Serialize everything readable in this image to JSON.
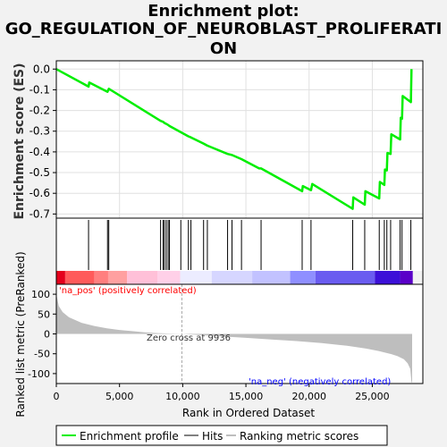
{
  "title_lines": [
    "Enrichment plot:",
    "GO_REGULATION_OF_NEUROBLAST_PROLIFERATI",
    "ON"
  ],
  "colors": {
    "profile": "#00ee00",
    "hits": "#000000",
    "metric_fill": "#bebebe",
    "pos_text": "#ff0000",
    "neg_text": "#0000ff",
    "legend_border": "#000000"
  },
  "chart_data": [
    {
      "type": "line",
      "name": "enrichment-profile",
      "ylabel": "Enrichment score (ES)",
      "ylim": [
        -0.72,
        0.04
      ],
      "yticks": [
        0.0,
        -0.1,
        -0.2,
        -0.3,
        -0.4,
        -0.5,
        -0.6,
        -0.7
      ],
      "ytick_labels": [
        "0.0",
        "-0.1",
        "-0.2",
        "-0.3",
        "-0.4",
        "-0.5",
        "-0.6",
        "-0.7"
      ],
      "xlim": [
        0,
        29000
      ],
      "grid": true,
      "points": [
        [
          0,
          0.0
        ],
        [
          2550,
          -0.085
        ],
        [
          2600,
          -0.065
        ],
        [
          4050,
          -0.11
        ],
        [
          4150,
          -0.095
        ],
        [
          8250,
          -0.25
        ],
        [
          8450,
          -0.255
        ],
        [
          8550,
          -0.26
        ],
        [
          8700,
          -0.265
        ],
        [
          8850,
          -0.27
        ],
        [
          8950,
          -0.275
        ],
        [
          10450,
          -0.325
        ],
        [
          10650,
          -0.33
        ],
        [
          11650,
          -0.36
        ],
        [
          11950,
          -0.37
        ],
        [
          13550,
          -0.41
        ],
        [
          13900,
          -0.415
        ],
        [
          14650,
          -0.435
        ],
        [
          16050,
          -0.48
        ],
        [
          16200,
          -0.48
        ],
        [
          19450,
          -0.59
        ],
        [
          19500,
          -0.565
        ],
        [
          20150,
          -0.585
        ],
        [
          20250,
          -0.555
        ],
        [
          23450,
          -0.675
        ],
        [
          23500,
          -0.62
        ],
        [
          24400,
          -0.655
        ],
        [
          24450,
          -0.59
        ],
        [
          25550,
          -0.625
        ],
        [
          25600,
          -0.545
        ],
        [
          25950,
          -0.56
        ],
        [
          26000,
          -0.485
        ],
        [
          26150,
          -0.49
        ],
        [
          26200,
          -0.405
        ],
        [
          26450,
          -0.41
        ],
        [
          26500,
          -0.315
        ],
        [
          27200,
          -0.34
        ],
        [
          27250,
          -0.235
        ],
        [
          27350,
          -0.24
        ],
        [
          27400,
          -0.13
        ],
        [
          28050,
          -0.16
        ],
        [
          28100,
          0.0
        ]
      ]
    },
    {
      "type": "scatter",
      "name": "hits",
      "x": [
        2550,
        4050,
        4150,
        8250,
        8450,
        8550,
        8700,
        8850,
        8950,
        9850,
        10450,
        10650,
        11650,
        11950,
        13550,
        13900,
        14650,
        16200,
        19450,
        20150,
        23450,
        24400,
        25550,
        25950,
        26150,
        26450,
        27200,
        27350,
        28050
      ]
    },
    {
      "type": "area",
      "name": "ranked-list-metric",
      "xlabel": "Rank in Ordered Dataset",
      "ylabel": "Ranked list metric (PreRanked)",
      "xlim": [
        0,
        29000
      ],
      "ylim": [
        -125,
        125
      ],
      "yticks": [
        100,
        50,
        0,
        -50,
        -100
      ],
      "ytick_labels": [
        "100",
        "50",
        "0",
        "-50",
        "-100"
      ],
      "xticks": [
        0,
        5000,
        10000,
        15000,
        20000,
        25000
      ],
      "xtick_labels": [
        "0",
        "5,000",
        "10,000",
        "15,000",
        "20,000",
        "25,000"
      ],
      "points": [
        [
          0,
          100
        ],
        [
          200,
          70
        ],
        [
          500,
          55
        ],
        [
          1000,
          42
        ],
        [
          2000,
          28
        ],
        [
          3000,
          20
        ],
        [
          4000,
          14
        ],
        [
          5000,
          10
        ],
        [
          6000,
          7
        ],
        [
          7000,
          4
        ],
        [
          8000,
          2
        ],
        [
          9000,
          1
        ],
        [
          9936,
          0
        ],
        [
          11000,
          -2
        ],
        [
          13000,
          -6
        ],
        [
          15000,
          -10
        ],
        [
          17000,
          -14
        ],
        [
          19000,
          -18
        ],
        [
          21000,
          -23
        ],
        [
          23000,
          -30
        ],
        [
          24500,
          -37
        ],
        [
          25500,
          -43
        ],
        [
          26500,
          -51
        ],
        [
          27000,
          -56
        ],
        [
          27500,
          -64
        ],
        [
          27800,
          -74
        ],
        [
          28000,
          -88
        ],
        [
          28100,
          -122
        ],
        [
          28150,
          -122
        ]
      ],
      "zero_cross_label": "Zero cross at 9936",
      "zero_cross_x": 9936,
      "pos_label": "'na_pos' (positively correlated)",
      "neg_label": "'na_neg' (negatively correlated)"
    },
    {
      "type": "heatmap",
      "name": "rank-color-bar",
      "xlim": [
        0,
        29000
      ],
      "segments": [
        {
          "from": 0,
          "to": 700,
          "color": "#e4001c"
        },
        {
          "from": 700,
          "to": 3000,
          "color": "#ff5a5a"
        },
        {
          "from": 3000,
          "to": 4100,
          "color": "#ff7f7f"
        },
        {
          "from": 4100,
          "to": 5600,
          "color": "#ffa0a0"
        },
        {
          "from": 5600,
          "to": 8000,
          "color": "#ffc0d8"
        },
        {
          "from": 8000,
          "to": 9800,
          "color": "#ffd0e8"
        },
        {
          "from": 9800,
          "to": 12300,
          "color": "#ececff"
        },
        {
          "from": 12300,
          "to": 15500,
          "color": "#d6d6ff"
        },
        {
          "from": 15500,
          "to": 18500,
          "color": "#c2c2ff"
        },
        {
          "from": 18500,
          "to": 20500,
          "color": "#8f8fff"
        },
        {
          "from": 20500,
          "to": 25200,
          "color": "#6a5cf0"
        },
        {
          "from": 25200,
          "to": 27200,
          "color": "#3c10d8"
        },
        {
          "from": 27200,
          "to": 28200,
          "color": "#5a00c8"
        }
      ]
    }
  ],
  "legend": {
    "items": [
      {
        "label": "Enrichment profile",
        "color": "#00ee00"
      },
      {
        "label": "Hits",
        "color": "#000000"
      },
      {
        "label": "Ranking metric scores",
        "color": "#bebebe"
      }
    ]
  }
}
